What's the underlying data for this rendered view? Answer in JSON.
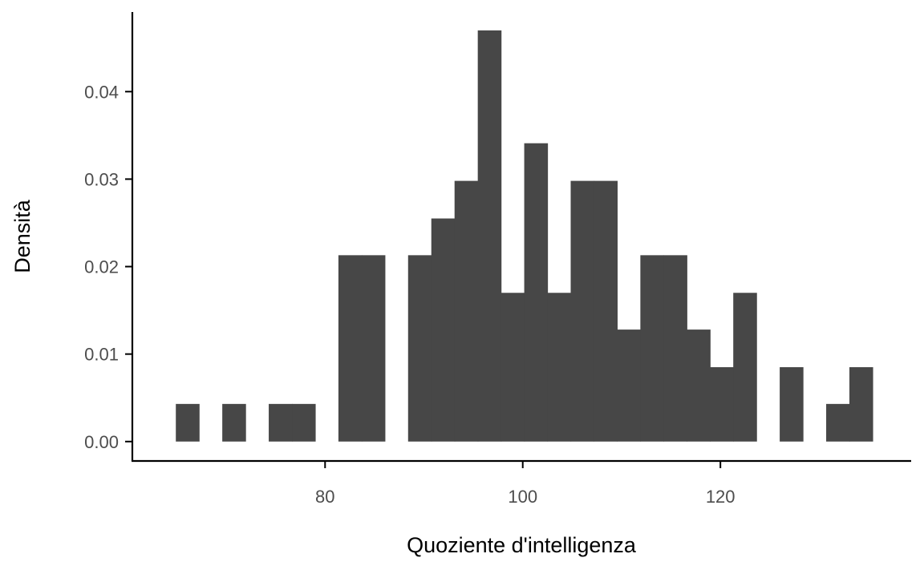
{
  "chart_data": {
    "type": "histogram",
    "xlabel": "Quoziente d'intelligenza",
    "ylabel": "Densità",
    "xlim": [
      60.5,
      139.3
    ],
    "ylim": [
      -0.00222,
      0.0491
    ],
    "x_ticks": [
      80,
      100,
      120
    ],
    "x_tick_labels": [
      "80",
      "100",
      "120"
    ],
    "y_ticks": [
      0.0,
      0.01,
      0.02,
      0.03,
      0.04
    ],
    "y_tick_labels": [
      "0.00",
      "0.01",
      "0.02",
      "0.03",
      "0.04"
    ],
    "bin_width": 2.35,
    "bar_color": "#474747",
    "grid": false,
    "bins": [
      {
        "start": 64.9,
        "end": 67.25,
        "density": 0.0043
      },
      {
        "start": 67.25,
        "end": 69.6,
        "density": 0.0
      },
      {
        "start": 69.6,
        "end": 71.95,
        "density": 0.0043
      },
      {
        "start": 71.95,
        "end": 74.3,
        "density": 0.0
      },
      {
        "start": 74.3,
        "end": 76.65,
        "density": 0.0043
      },
      {
        "start": 76.65,
        "end": 79.0,
        "density": 0.0043
      },
      {
        "start": 79.0,
        "end": 81.35,
        "density": 0.0
      },
      {
        "start": 81.35,
        "end": 83.7,
        "density": 0.0213
      },
      {
        "start": 83.7,
        "end": 86.05,
        "density": 0.0213
      },
      {
        "start": 86.05,
        "end": 88.4,
        "density": 0.0
      },
      {
        "start": 88.4,
        "end": 90.75,
        "density": 0.0213
      },
      {
        "start": 90.75,
        "end": 93.1,
        "density": 0.0255
      },
      {
        "start": 93.1,
        "end": 95.45,
        "density": 0.0298
      },
      {
        "start": 95.45,
        "end": 97.8,
        "density": 0.047
      },
      {
        "start": 97.8,
        "end": 100.15,
        "density": 0.017
      },
      {
        "start": 100.15,
        "end": 102.5,
        "density": 0.0341
      },
      {
        "start": 102.5,
        "end": 104.85,
        "density": 0.017
      },
      {
        "start": 104.85,
        "end": 107.2,
        "density": 0.0298
      },
      {
        "start": 107.2,
        "end": 109.55,
        "density": 0.0298
      },
      {
        "start": 109.55,
        "end": 111.9,
        "density": 0.0128
      },
      {
        "start": 111.9,
        "end": 114.25,
        "density": 0.0213
      },
      {
        "start": 114.25,
        "end": 116.6,
        "density": 0.0213
      },
      {
        "start": 116.6,
        "end": 118.95,
        "density": 0.0128
      },
      {
        "start": 118.95,
        "end": 121.3,
        "density": 0.0085
      },
      {
        "start": 121.3,
        "end": 123.65,
        "density": 0.017
      },
      {
        "start": 123.65,
        "end": 126.0,
        "density": 0.0
      },
      {
        "start": 126.0,
        "end": 128.35,
        "density": 0.0085
      },
      {
        "start": 128.35,
        "end": 130.7,
        "density": 0.0
      },
      {
        "start": 130.7,
        "end": 133.05,
        "density": 0.0043
      },
      {
        "start": 133.05,
        "end": 135.4,
        "density": 0.0085
      }
    ]
  }
}
